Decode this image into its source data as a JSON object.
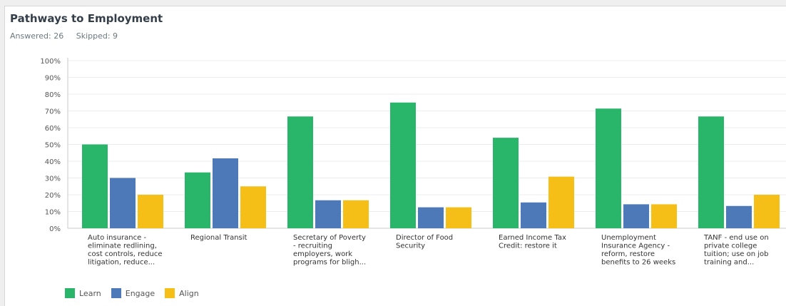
{
  "title": "Pathways to Employment",
  "stats": {
    "answered": "Answered: 26",
    "skipped": "Skipped: 9"
  },
  "colors": {
    "Learn": "#2ab66a",
    "Engage": "#4e79b9",
    "Align": "#f6bf18"
  },
  "chart_data": {
    "type": "bar",
    "ylim": [
      0,
      100
    ],
    "yticks": [
      "0%",
      "10%",
      "20%",
      "30%",
      "40%",
      "50%",
      "60%",
      "70%",
      "80%",
      "90%",
      "100%"
    ],
    "categories": [
      [
        "Auto insurance -",
        "eliminate redlining,",
        "cost controls, reduce",
        "litigation, reduce..."
      ],
      [
        "Regional Transit"
      ],
      [
        "Secretary of Poverty",
        "- recruiting",
        "employers, work",
        "programs for bligh..."
      ],
      [
        "Director of Food",
        "Security"
      ],
      [
        "Earned Income Tax",
        "Credit: restore it"
      ],
      [
        "Unemployment",
        "Insurance Agency -",
        "reform, restore",
        "benefits to 26 weeks"
      ],
      [
        "TANF - end use on",
        "private college",
        "tuition; use on job",
        "training and..."
      ]
    ],
    "series": [
      {
        "name": "Learn",
        "values": [
          50,
          33.3,
          66.7,
          75,
          54,
          71.4,
          66.7
        ]
      },
      {
        "name": "Engage",
        "values": [
          30,
          41.7,
          16.7,
          12.5,
          15.4,
          14.3,
          13.3
        ]
      },
      {
        "name": "Align",
        "values": [
          20,
          25,
          16.7,
          12.5,
          30.8,
          14.3,
          20
        ]
      }
    ],
    "legend": "bottom-left",
    "grid": true
  }
}
